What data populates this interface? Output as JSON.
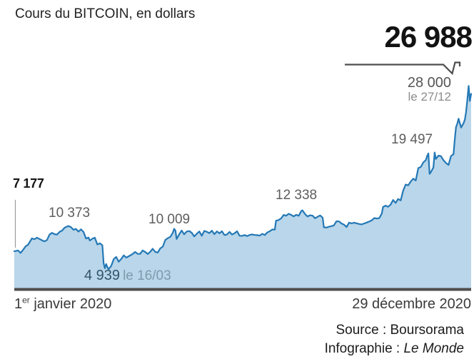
{
  "header": {
    "title": "Cours du BITCOIN, en dollars"
  },
  "colors": {
    "line": "#2478b5",
    "area_fill": "#b9d6ea",
    "baseline": "#4e4e4e",
    "callout_line": "#4d4d4d",
    "leader_line": "#9a9a9a",
    "label_grey": "#5d5d5d",
    "low_value_blue": "#33546b",
    "low_date_grey": "#7f99ac"
  },
  "axis": {
    "start_num": "1",
    "start_sup": "er",
    "start_rest": " janvier 2020",
    "end_label": "29 décembre 2020"
  },
  "credits": {
    "source": "Source : Boursorama",
    "infographie_label": "Infographie : ",
    "infographie_value": "Le Monde"
  },
  "chart_data": {
    "type": "area",
    "title": "Cours du BITCOIN, en dollars",
    "currency": "dollars",
    "x_domain_days": [
      0,
      363
    ],
    "ylim": [
      2430,
      30000
    ],
    "x_start_label": "1er janvier 2020",
    "x_end_label": "29 décembre 2020",
    "grid": false,
    "legend": false,
    "annotations": {
      "latest": {
        "text": "26 988"
      },
      "start": {
        "text": "7 177"
      },
      "feb_peak": {
        "text": "10 373"
      },
      "may_peak": {
        "text": "10 009"
      },
      "aug_peak": {
        "text": "12 338"
      },
      "nov_peak": {
        "text": "19 497"
      },
      "dec_peak": {
        "text": "28 000",
        "date": "le 27/12"
      },
      "march_low": {
        "text": "4 939",
        "date": "le 16/03"
      }
    },
    "series": [
      {
        "name": "Cours du bitcoin (USD)",
        "points": [
          [
            0,
            7177
          ],
          [
            3,
            7290
          ],
          [
            5,
            6970
          ],
          [
            7,
            7360
          ],
          [
            9,
            7810
          ],
          [
            11,
            8020
          ],
          [
            14,
            8810
          ],
          [
            16,
            8700
          ],
          [
            18,
            8900
          ],
          [
            21,
            8650
          ],
          [
            24,
            8430
          ],
          [
            26,
            8600
          ],
          [
            28,
            9280
          ],
          [
            30,
            9510
          ],
          [
            32,
            9340
          ],
          [
            34,
            9290
          ],
          [
            36,
            9620
          ],
          [
            38,
            9790
          ],
          [
            40,
            10150
          ],
          [
            43,
            10373
          ],
          [
            45,
            10230
          ],
          [
            47,
            9890
          ],
          [
            49,
            10000
          ],
          [
            51,
            9660
          ],
          [
            53,
            9950
          ],
          [
            55,
            9610
          ],
          [
            57,
            8790
          ],
          [
            59,
            8910
          ],
          [
            60,
            8540
          ],
          [
            62,
            8760
          ],
          [
            64,
            8900
          ],
          [
            66,
            8040
          ],
          [
            68,
            8190
          ],
          [
            70,
            7940
          ],
          [
            71,
            5660
          ],
          [
            72,
            5050
          ],
          [
            73,
            5580
          ],
          [
            74,
            5170
          ],
          [
            75,
            4939
          ],
          [
            77,
            5350
          ],
          [
            79,
            6190
          ],
          [
            81,
            6470
          ],
          [
            83,
            5870
          ],
          [
            85,
            6230
          ],
          [
            87,
            6670
          ],
          [
            89,
            6390
          ],
          [
            92,
            6650
          ],
          [
            94,
            6840
          ],
          [
            96,
            7100
          ],
          [
            98,
            6870
          ],
          [
            100,
            6860
          ],
          [
            102,
            7290
          ],
          [
            104,
            7100
          ],
          [
            106,
            6840
          ],
          [
            108,
            7120
          ],
          [
            110,
            7500
          ],
          [
            112,
            7100
          ],
          [
            114,
            7030
          ],
          [
            116,
            7550
          ],
          [
            118,
            7760
          ],
          [
            120,
            8620
          ],
          [
            122,
            8830
          ],
          [
            124,
            9000
          ],
          [
            126,
            9520
          ],
          [
            127,
            10009
          ],
          [
            128,
            9810
          ],
          [
            129,
            8730
          ],
          [
            131,
            9310
          ],
          [
            133,
            9790
          ],
          [
            135,
            9320
          ],
          [
            137,
            9670
          ],
          [
            139,
            9730
          ],
          [
            141,
            9520
          ],
          [
            143,
            9060
          ],
          [
            145,
            9380
          ],
          [
            147,
            9680
          ],
          [
            149,
            9140
          ],
          [
            151,
            9750
          ],
          [
            153,
            9630
          ],
          [
            155,
            9470
          ],
          [
            157,
            9780
          ],
          [
            159,
            9340
          ],
          [
            161,
            9690
          ],
          [
            163,
            9440
          ],
          [
            165,
            9700
          ],
          [
            167,
            9230
          ],
          [
            169,
            9300
          ],
          [
            171,
            9620
          ],
          [
            173,
            9290
          ],
          [
            175,
            9440
          ],
          [
            177,
            9700
          ],
          [
            179,
            9140
          ],
          [
            181,
            9120
          ],
          [
            183,
            9230
          ],
          [
            185,
            9090
          ],
          [
            187,
            9240
          ],
          [
            189,
            9300
          ],
          [
            191,
            9240
          ],
          [
            193,
            9210
          ],
          [
            195,
            9160
          ],
          [
            197,
            9380
          ],
          [
            199,
            9230
          ],
          [
            201,
            9550
          ],
          [
            203,
            9700
          ],
          [
            205,
            9930
          ],
          [
            207,
            9910
          ],
          [
            208,
            11030
          ],
          [
            210,
            11110
          ],
          [
            212,
            11320
          ],
          [
            214,
            11760
          ],
          [
            216,
            11650
          ],
          [
            218,
            11900
          ],
          [
            220,
            11760
          ],
          [
            222,
            11570
          ],
          [
            224,
            11780
          ],
          [
            226,
            11650
          ],
          [
            228,
            12250
          ],
          [
            229,
            12338
          ],
          [
            231,
            11870
          ],
          [
            233,
            11560
          ],
          [
            235,
            11720
          ],
          [
            237,
            11660
          ],
          [
            239,
            11340
          ],
          [
            241,
            11530
          ],
          [
            243,
            11700
          ],
          [
            245,
            11420
          ],
          [
            246,
            10210
          ],
          [
            248,
            10160
          ],
          [
            250,
            10280
          ],
          [
            252,
            10340
          ],
          [
            254,
            10450
          ],
          [
            256,
            10950
          ],
          [
            258,
            10940
          ],
          [
            260,
            10680
          ],
          [
            262,
            10540
          ],
          [
            264,
            10230
          ],
          [
            266,
            10790
          ],
          [
            268,
            10690
          ],
          [
            270,
            10780
          ],
          [
            272,
            10700
          ],
          [
            274,
            10620
          ],
          [
            276,
            10570
          ],
          [
            278,
            10680
          ],
          [
            280,
            10800
          ],
          [
            282,
            10930
          ],
          [
            284,
            11070
          ],
          [
            286,
            11370
          ],
          [
            288,
            11300
          ],
          [
            290,
            11360
          ],
          [
            292,
            11920
          ],
          [
            293,
            12760
          ],
          [
            295,
            12930
          ],
          [
            297,
            12780
          ],
          [
            299,
            13050
          ],
          [
            301,
            13640
          ],
          [
            303,
            13270
          ],
          [
            305,
            13760
          ],
          [
            307,
            13580
          ],
          [
            309,
            14820
          ],
          [
            311,
            15590
          ],
          [
            313,
            15480
          ],
          [
            315,
            15960
          ],
          [
            317,
            16320
          ],
          [
            319,
            16100
          ],
          [
            321,
            17650
          ],
          [
            323,
            17800
          ],
          [
            325,
            18370
          ],
          [
            327,
            18660
          ],
          [
            328,
            19160
          ],
          [
            329,
            19497
          ],
          [
            330,
            16920
          ],
          [
            331,
            17150
          ],
          [
            333,
            17720
          ],
          [
            334,
            19620
          ],
          [
            335,
            18800
          ],
          [
            337,
            19220
          ],
          [
            339,
            19150
          ],
          [
            341,
            18650
          ],
          [
            343,
            18300
          ],
          [
            345,
            18050
          ],
          [
            347,
            19170
          ],
          [
            349,
            19400
          ],
          [
            350,
            21310
          ],
          [
            351,
            22810
          ],
          [
            352,
            23240
          ],
          [
            353,
            23870
          ],
          [
            355,
            22750
          ],
          [
            357,
            23300
          ],
          [
            358,
            23760
          ],
          [
            359,
            24710
          ],
          [
            360,
            26280
          ],
          [
            361,
            28000
          ],
          [
            362,
            26100
          ],
          [
            363,
            26988
          ]
        ]
      }
    ]
  }
}
